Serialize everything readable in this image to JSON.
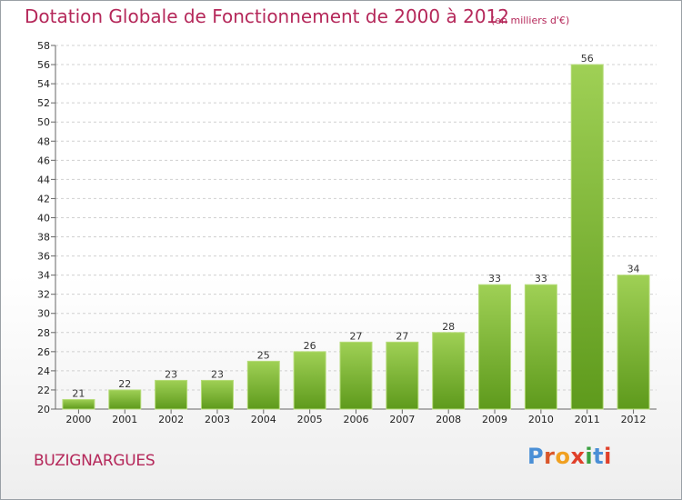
{
  "header": {
    "title": "Dotation Globale de Fonctionnement de 2000 à 2012",
    "subtitle": "(en milliers d'€)"
  },
  "footer": {
    "commune": "BUZIGNARGUES",
    "logo_text": "Proxiti",
    "logo_colors": [
      "#4a8fd6",
      "#d9562a",
      "#f0a020",
      "#e0402a",
      "#3aa040",
      "#4a8fd6",
      "#e0402a"
    ]
  },
  "chart_data": {
    "type": "bar",
    "categories": [
      "2000",
      "2001",
      "2002",
      "2003",
      "2004",
      "2005",
      "2006",
      "2007",
      "2008",
      "2009",
      "2010",
      "2011",
      "2012"
    ],
    "values": [
      21,
      22,
      23,
      23,
      25,
      26,
      27,
      27,
      28,
      33,
      33,
      56,
      34
    ],
    "value_labels": [
      "21",
      "22",
      "23",
      "23",
      "25",
      "26",
      "27",
      "27",
      "28",
      "33",
      "33",
      "56",
      "34"
    ],
    "ylim": [
      20,
      58
    ],
    "yticks": [
      20,
      22,
      24,
      26,
      28,
      30,
      32,
      34,
      36,
      38,
      40,
      42,
      44,
      46,
      48,
      50,
      52,
      54,
      56,
      58
    ],
    "ytick_labels": [
      "20",
      "22",
      "24",
      "26",
      "28",
      "30",
      "32",
      "34",
      "36",
      "38",
      "40",
      "42",
      "44",
      "46",
      "48",
      "50",
      "52",
      "54",
      "56",
      "58"
    ],
    "grid": "horizontal dashed",
    "bar_color": "#7ab830"
  }
}
